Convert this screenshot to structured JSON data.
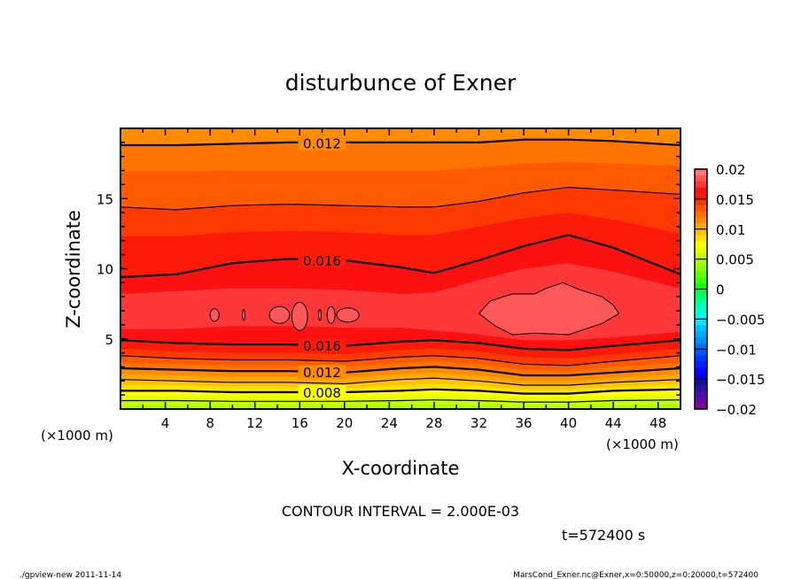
{
  "chart_data": {
    "type": "contour",
    "title": "disturbunce of Exner",
    "xlabel": "X-coordinate",
    "ylabel": "Z-coordinate",
    "x_unit": "(×1000 m)",
    "z_unit": "(×1000 m)",
    "xlim": [
      0,
      50
    ],
    "zlim": [
      0,
      20
    ],
    "x_ticks": [
      4,
      8,
      12,
      16,
      20,
      24,
      28,
      32,
      36,
      40,
      44,
      48
    ],
    "x_tick_labels": [
      "4",
      "8",
      "12",
      "16",
      "20",
      "24",
      "28",
      "32",
      "36",
      "40",
      "44",
      "48"
    ],
    "z_ticks": [
      5,
      10,
      15
    ],
    "z_tick_labels": [
      "5",
      "10",
      "15"
    ],
    "contour_interval_text": "CONTOUR INTERVAL = 2.000E-03",
    "time_text": "t=572400 s",
    "contour_labels": [
      {
        "text": "0.012",
        "x": 18.0,
        "z": 18.95
      },
      {
        "text": "0.016",
        "x": 18.0,
        "z": 10.6
      },
      {
        "text": "0.016",
        "x": 18.0,
        "z": 4.55
      },
      {
        "text": "0.012",
        "x": 18.0,
        "z": 2.65
      },
      {
        "text": "0.008",
        "x": 18.0,
        "z": 1.2
      }
    ],
    "x_grid": [
      0,
      5,
      10,
      15,
      20,
      25,
      28,
      32,
      36,
      40,
      44,
      50
    ],
    "lower_levels": [
      {
        "level": 0.017,
        "line": "none",
        "z": [
          5.7,
          5.7,
          5.9,
          5.9,
          5.8,
          5.8,
          5.6,
          5.3,
          4.9,
          4.9,
          5.1,
          5.5
        ]
      },
      {
        "level": 0.016,
        "line": "thick",
        "z": [
          4.9,
          4.7,
          4.6,
          4.6,
          4.5,
          4.8,
          4.9,
          4.7,
          4.3,
          4.2,
          4.5,
          4.9
        ]
      },
      {
        "level": 0.015,
        "line": "none",
        "z": [
          4.3,
          4.1,
          4.0,
          4.0,
          3.9,
          4.2,
          4.3,
          4.1,
          3.7,
          3.6,
          3.9,
          4.3
        ]
      },
      {
        "level": 0.014,
        "line": "thin",
        "z": [
          3.8,
          3.6,
          3.5,
          3.5,
          3.4,
          3.7,
          3.8,
          3.6,
          3.2,
          3.1,
          3.4,
          3.8
        ]
      },
      {
        "level": 0.013,
        "line": "none",
        "z": [
          3.3,
          3.2,
          3.1,
          3.1,
          3.0,
          3.3,
          3.4,
          3.2,
          2.8,
          2.7,
          3.0,
          3.3
        ]
      },
      {
        "level": 0.012,
        "line": "thick",
        "z": [
          2.9,
          2.8,
          2.7,
          2.7,
          2.6,
          2.9,
          3.0,
          2.8,
          2.4,
          2.4,
          2.6,
          2.9
        ]
      },
      {
        "level": 0.011,
        "line": "none",
        "z": [
          2.5,
          2.4,
          2.3,
          2.3,
          2.2,
          2.5,
          2.6,
          2.4,
          2.0,
          2.0,
          2.2,
          2.5
        ]
      },
      {
        "level": 0.01,
        "line": "thin",
        "z": [
          2.1,
          2.0,
          1.9,
          1.9,
          1.8,
          2.1,
          2.2,
          2.0,
          1.7,
          1.7,
          1.9,
          2.1
        ]
      },
      {
        "level": 0.009,
        "line": "none",
        "z": [
          1.7,
          1.7,
          1.6,
          1.6,
          1.5,
          1.7,
          1.8,
          1.7,
          1.4,
          1.4,
          1.6,
          1.8
        ]
      },
      {
        "level": 0.008,
        "line": "thick",
        "z": [
          1.3,
          1.3,
          1.2,
          1.2,
          1.2,
          1.3,
          1.4,
          1.3,
          1.1,
          1.1,
          1.3,
          1.4
        ]
      },
      {
        "level": 0.007,
        "line": "none",
        "z": [
          0.95,
          0.95,
          0.9,
          0.9,
          0.9,
          0.95,
          1.0,
          0.95,
          0.8,
          0.8,
          0.95,
          1.0
        ]
      },
      {
        "level": 0.006,
        "line": "thin",
        "z": [
          0.6,
          0.6,
          0.55,
          0.55,
          0.55,
          0.6,
          0.65,
          0.6,
          0.5,
          0.5,
          0.6,
          0.65
        ]
      },
      {
        "level": 0.005,
        "line": "none",
        "z": [
          0.25,
          0.25,
          0.2,
          0.2,
          0.2,
          0.25,
          0.3,
          0.25,
          0.15,
          0.15,
          0.25,
          0.3
        ]
      }
    ],
    "upper_levels": [
      {
        "level": 0.017,
        "line": "none",
        "z": [
          8.2,
          8.4,
          8.6,
          8.6,
          8.5,
          8.2,
          8.3,
          9.2,
          10.0,
          10.4,
          9.8,
          8.6
        ]
      },
      {
        "level": 0.016,
        "line": "thick",
        "z": [
          9.4,
          9.6,
          10.4,
          10.7,
          10.6,
          10.1,
          9.7,
          10.6,
          11.6,
          12.4,
          11.5,
          9.6
        ]
      },
      {
        "level": 0.015,
        "line": "none",
        "z": [
          12.3,
          12.3,
          12.6,
          12.7,
          12.6,
          12.4,
          12.4,
          13.0,
          13.6,
          14.0,
          13.5,
          12.5
        ]
      },
      {
        "level": 0.014,
        "line": "thin",
        "z": [
          14.4,
          14.2,
          14.5,
          14.6,
          14.5,
          14.4,
          14.4,
          14.8,
          15.4,
          15.8,
          15.6,
          15.3
        ]
      },
      {
        "level": 0.013,
        "line": "none",
        "z": [
          16.9,
          16.9,
          17.0,
          17.0,
          17.0,
          17.0,
          17.0,
          17.2,
          17.5,
          17.6,
          17.5,
          17.3
        ]
      },
      {
        "level": 0.012,
        "line": "thick",
        "z": [
          18.8,
          18.8,
          18.9,
          19.0,
          19.0,
          19.0,
          19.0,
          19.0,
          19.2,
          19.2,
          19.1,
          18.8
        ]
      }
    ],
    "center_level": 0.018,
    "bottom_level": 0.005,
    "top_level": 0.012,
    "island_level": 0.019,
    "big_island": [
      [
        32,
        6.8
      ],
      [
        33,
        7.7
      ],
      [
        35,
        8.2
      ],
      [
        37,
        8.2
      ],
      [
        38,
        8.6
      ],
      [
        39.5,
        9.0
      ],
      [
        41,
        8.5
      ],
      [
        43,
        8.0
      ],
      [
        44,
        7.4
      ],
      [
        44.5,
        6.8
      ],
      [
        43,
        6.1
      ],
      [
        40,
        5.3
      ],
      [
        37,
        5.4
      ],
      [
        35,
        5.3
      ],
      [
        33.5,
        5.9
      ]
    ],
    "small_islands": [
      {
        "x": 8.4,
        "z": 6.7,
        "rx": 0.4,
        "rz": 0.45
      },
      {
        "x": 11.0,
        "z": 6.7,
        "rx": 0.12,
        "rz": 0.4
      },
      {
        "x": 14.2,
        "z": 6.7,
        "rx": 0.9,
        "rz": 0.6
      },
      {
        "x": 16.0,
        "z": 6.6,
        "rx": 0.7,
        "rz": 1.0
      },
      {
        "x": 17.8,
        "z": 6.7,
        "rx": 0.12,
        "rz": 0.4
      },
      {
        "x": 18.8,
        "z": 6.7,
        "rx": 0.35,
        "rz": 0.6
      },
      {
        "x": 20.3,
        "z": 6.7,
        "rx": 1.0,
        "rz": 0.5
      }
    ],
    "colorbar": {
      "min": -0.02,
      "max": 0.02,
      "step": 0.001,
      "tick_values": [
        0.02,
        0.015,
        0.01,
        0.005,
        0,
        -0.005,
        -0.01,
        -0.015,
        -0.02
      ],
      "tick_labels": [
        "0.02",
        "0.015",
        "0.01",
        "0.005",
        "0",
        "−0.005",
        "−0.01",
        "−0.015",
        "−0.02"
      ],
      "colors": [
        "#7a0aa0",
        "#620aa0",
        "#4a10a8",
        "#2a14a8",
        "#1010a0",
        "#0000e8",
        "#0008ff",
        "#0020ff",
        "#0038ff",
        "#0058ff",
        "#0070ff",
        "#0090ff",
        "#00a8ff",
        "#00c4ff",
        "#00e8ff",
        "#00fff0",
        "#00ffd0",
        "#00ffb0",
        "#00ff80",
        "#00ff50",
        "#10ff10",
        "#40ff00",
        "#68ff00",
        "#88ff00",
        "#a8ff00",
        "#c8ff00",
        "#e4ff00",
        "#ffff00",
        "#ffe000",
        "#ffc400",
        "#ffa800",
        "#ff8c00",
        "#ff7400",
        "#ff5a00",
        "#ff3a00",
        "#fc1a08",
        "#fc1010",
        "#fe3838",
        "#fe5858",
        "#fe7878"
      ]
    }
  },
  "footer": {
    "left": "./gpview-new   2011-11-14",
    "right": "MarsCond_Exner.nc@Exner,x=0:50000,z=0:20000,t=572400"
  }
}
